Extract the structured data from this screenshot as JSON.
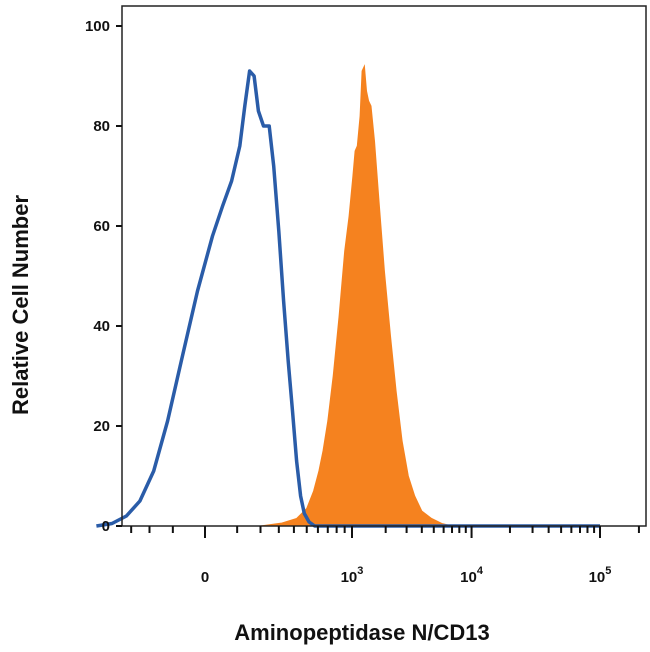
{
  "chart_data": {
    "type": "area",
    "title": "",
    "xlabel": "Aminopeptidase N/CD13",
    "ylabel": "Relative Cell Number",
    "ylim": [
      0,
      104
    ],
    "yticks": [
      0,
      20,
      40,
      60,
      80,
      100
    ],
    "x_scale": "biexponential",
    "xticks": [
      {
        "value": 0,
        "base": "0",
        "exp": ""
      },
      {
        "value": 1000,
        "base": "10",
        "exp": "3"
      },
      {
        "value": 10000,
        "base": "10",
        "exp": "4"
      },
      {
        "value": 100000,
        "base": "10",
        "exp": "5"
      }
    ],
    "grid": false,
    "legend": "none",
    "series": [
      {
        "color": "#2a5ca8",
        "style": "outline",
        "points": [
          [
            -560,
            0
          ],
          [
            -430,
            0.5
          ],
          [
            -330,
            2
          ],
          [
            -250,
            5
          ],
          [
            -180,
            11
          ],
          [
            -120,
            21
          ],
          [
            -70,
            33
          ],
          [
            -20,
            47
          ],
          [
            20,
            58
          ],
          [
            50,
            64
          ],
          [
            80,
            69
          ],
          [
            110,
            76
          ],
          [
            130,
            84
          ],
          [
            150,
            91
          ],
          [
            170,
            90
          ],
          [
            190,
            83
          ],
          [
            215,
            80
          ],
          [
            245,
            80
          ],
          [
            270,
            72
          ],
          [
            300,
            59
          ],
          [
            330,
            45
          ],
          [
            360,
            33
          ],
          [
            390,
            23
          ],
          [
            420,
            13
          ],
          [
            450,
            6
          ],
          [
            480,
            2.5
          ],
          [
            520,
            0.8
          ],
          [
            570,
            0
          ],
          [
            100000,
            0
          ]
        ]
      },
      {
        "color": "#f5821f",
        "style": "filled",
        "points": [
          [
            200,
            0
          ],
          [
            320,
            0.6
          ],
          [
            420,
            1.5
          ],
          [
            500,
            3.5
          ],
          [
            560,
            7
          ],
          [
            610,
            11
          ],
          [
            650,
            15
          ],
          [
            700,
            21
          ],
          [
            760,
            30
          ],
          [
            830,
            42
          ],
          [
            900,
            55
          ],
          [
            960,
            62
          ],
          [
            1020,
            70
          ],
          [
            1070,
            75
          ],
          [
            1120,
            76
          ],
          [
            1190,
            82
          ],
          [
            1240,
            91
          ],
          [
            1300,
            92
          ],
          [
            1360,
            87
          ],
          [
            1420,
            85
          ],
          [
            1490,
            84
          ],
          [
            1600,
            77
          ],
          [
            1750,
            65
          ],
          [
            1950,
            51
          ],
          [
            2200,
            38
          ],
          [
            2450,
            27
          ],
          [
            2750,
            17
          ],
          [
            3100,
            10
          ],
          [
            3500,
            6
          ],
          [
            4000,
            3
          ],
          [
            4800,
            1.5
          ],
          [
            5800,
            0.5
          ],
          [
            7000,
            0
          ],
          [
            100000,
            0
          ]
        ]
      }
    ]
  }
}
